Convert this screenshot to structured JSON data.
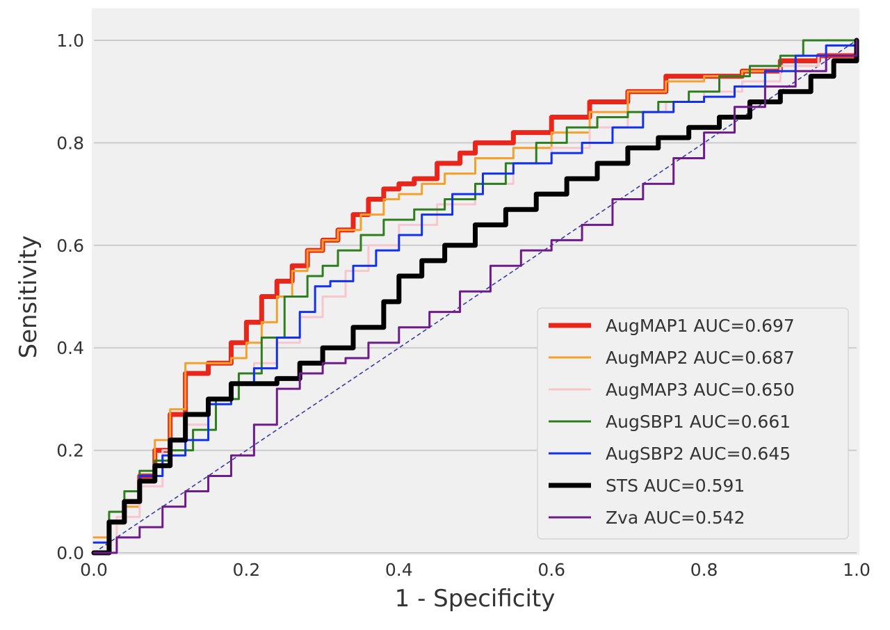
{
  "chart_data": {
    "type": "line",
    "title": "",
    "xlabel": "1 - Specificity",
    "ylabel": "Sensitivity",
    "xlim": [
      0.0,
      1.0
    ],
    "ylim": [
      0.0,
      1.0
    ],
    "grid": "horizontal",
    "legend_placement": "lower-right",
    "x_ticks": [
      "0.0",
      "0.2",
      "0.4",
      "0.6",
      "0.8",
      "1.0"
    ],
    "y_ticks": [
      "0.0",
      "0.2",
      "0.4",
      "0.6",
      "0.8",
      "1.0"
    ],
    "background_color": "#f0f0f0",
    "diagonal": {
      "x": [
        0,
        1
      ],
      "y": [
        0,
        1
      ],
      "color": "#3a3aa0",
      "style": "dashed"
    },
    "series": [
      {
        "name": "AugMAP1 AUC=0.697",
        "color": "#e8261c",
        "x": [
          0.0,
          0.02,
          0.04,
          0.06,
          0.08,
          0.1,
          0.12,
          0.15,
          0.18,
          0.2,
          0.22,
          0.24,
          0.26,
          0.28,
          0.3,
          0.32,
          0.34,
          0.36,
          0.38,
          0.4,
          0.42,
          0.45,
          0.48,
          0.5,
          0.55,
          0.6,
          0.65,
          0.7,
          0.75,
          0.8,
          0.85,
          0.9,
          0.95,
          1.0
        ],
        "y": [
          0.0,
          0.06,
          0.1,
          0.15,
          0.2,
          0.27,
          0.35,
          0.37,
          0.41,
          0.45,
          0.5,
          0.53,
          0.56,
          0.59,
          0.61,
          0.63,
          0.66,
          0.69,
          0.71,
          0.72,
          0.73,
          0.76,
          0.78,
          0.8,
          0.82,
          0.85,
          0.88,
          0.9,
          0.93,
          0.93,
          0.94,
          0.96,
          0.97,
          1.0
        ]
      },
      {
        "name": "AugMAP2 AUC=0.687",
        "color": "#f5a02c",
        "x": [
          0.0,
          0.02,
          0.04,
          0.06,
          0.08,
          0.1,
          0.12,
          0.15,
          0.18,
          0.2,
          0.22,
          0.24,
          0.26,
          0.28,
          0.3,
          0.32,
          0.35,
          0.38,
          0.4,
          0.43,
          0.46,
          0.5,
          0.55,
          0.6,
          0.65,
          0.7,
          0.75,
          0.8,
          0.85,
          0.9,
          0.95,
          1.0
        ],
        "y": [
          0.03,
          0.06,
          0.09,
          0.15,
          0.22,
          0.28,
          0.37,
          0.37,
          0.38,
          0.41,
          0.45,
          0.5,
          0.55,
          0.59,
          0.61,
          0.63,
          0.66,
          0.69,
          0.7,
          0.72,
          0.74,
          0.77,
          0.79,
          0.82,
          0.86,
          0.9,
          0.92,
          0.93,
          0.94,
          0.95,
          0.97,
          1.0
        ]
      },
      {
        "name": "AugMAP3 AUC=0.650",
        "color": "#f8c6cf",
        "x": [
          0.0,
          0.03,
          0.06,
          0.09,
          0.12,
          0.15,
          0.18,
          0.21,
          0.24,
          0.27,
          0.3,
          0.33,
          0.36,
          0.4,
          0.45,
          0.5,
          0.55,
          0.6,
          0.65,
          0.7,
          0.75,
          0.8,
          0.85,
          0.9,
          0.95,
          1.0
        ],
        "y": [
          0.0,
          0.07,
          0.13,
          0.2,
          0.25,
          0.3,
          0.33,
          0.37,
          0.41,
          0.46,
          0.5,
          0.55,
          0.6,
          0.64,
          0.68,
          0.72,
          0.76,
          0.79,
          0.83,
          0.86,
          0.88,
          0.9,
          0.92,
          0.95,
          0.97,
          1.0
        ]
      },
      {
        "name": "AugSBP1 AUC=0.661",
        "color": "#2e7d1e",
        "x": [
          0.0,
          0.02,
          0.04,
          0.06,
          0.08,
          0.1,
          0.13,
          0.16,
          0.19,
          0.22,
          0.25,
          0.28,
          0.3,
          0.32,
          0.35,
          0.38,
          0.42,
          0.46,
          0.5,
          0.54,
          0.58,
          0.62,
          0.66,
          0.7,
          0.74,
          0.78,
          0.82,
          0.86,
          0.9,
          0.93,
          1.0
        ],
        "y": [
          0.0,
          0.08,
          0.12,
          0.16,
          0.18,
          0.2,
          0.24,
          0.3,
          0.35,
          0.42,
          0.5,
          0.54,
          0.56,
          0.59,
          0.62,
          0.65,
          0.67,
          0.69,
          0.72,
          0.76,
          0.8,
          0.83,
          0.85,
          0.86,
          0.88,
          0.9,
          0.93,
          0.95,
          0.97,
          1.0,
          1.0
        ]
      },
      {
        "name": "AugSBP2 AUC=0.645",
        "color": "#1230f0",
        "x": [
          0.0,
          0.02,
          0.04,
          0.06,
          0.09,
          0.12,
          0.15,
          0.18,
          0.21,
          0.24,
          0.27,
          0.29,
          0.31,
          0.34,
          0.37,
          0.4,
          0.43,
          0.47,
          0.51,
          0.55,
          0.6,
          0.64,
          0.68,
          0.72,
          0.76,
          0.8,
          0.84,
          0.88,
          0.92,
          0.96,
          1.0
        ],
        "y": [
          0.02,
          0.06,
          0.1,
          0.15,
          0.19,
          0.22,
          0.29,
          0.33,
          0.36,
          0.42,
          0.47,
          0.52,
          0.53,
          0.56,
          0.59,
          0.62,
          0.66,
          0.7,
          0.74,
          0.76,
          0.78,
          0.8,
          0.83,
          0.86,
          0.88,
          0.89,
          0.91,
          0.94,
          0.97,
          0.99,
          1.0
        ]
      },
      {
        "name": "STS AUC=0.591",
        "color": "#000000",
        "x": [
          0.0,
          0.02,
          0.04,
          0.06,
          0.08,
          0.1,
          0.12,
          0.15,
          0.18,
          0.21,
          0.24,
          0.27,
          0.3,
          0.34,
          0.38,
          0.4,
          0.43,
          0.46,
          0.5,
          0.54,
          0.58,
          0.62,
          0.66,
          0.7,
          0.74,
          0.78,
          0.82,
          0.86,
          0.9,
          0.94,
          0.97,
          1.0
        ],
        "y": [
          0.0,
          0.06,
          0.1,
          0.14,
          0.17,
          0.22,
          0.27,
          0.3,
          0.33,
          0.33,
          0.34,
          0.37,
          0.4,
          0.44,
          0.49,
          0.54,
          0.57,
          0.6,
          0.64,
          0.67,
          0.7,
          0.73,
          0.76,
          0.79,
          0.81,
          0.83,
          0.85,
          0.88,
          0.9,
          0.93,
          0.96,
          1.0
        ]
      },
      {
        "name": "Zva AUC=0.542",
        "color": "#6e1a8a",
        "x": [
          0.0,
          0.03,
          0.06,
          0.09,
          0.12,
          0.15,
          0.18,
          0.21,
          0.24,
          0.27,
          0.3,
          0.33,
          0.36,
          0.4,
          0.44,
          0.48,
          0.52,
          0.56,
          0.6,
          0.64,
          0.68,
          0.72,
          0.76,
          0.8,
          0.84,
          0.88,
          0.92,
          0.96,
          1.0
        ],
        "y": [
          0.0,
          0.03,
          0.05,
          0.09,
          0.12,
          0.15,
          0.19,
          0.25,
          0.32,
          0.35,
          0.37,
          0.38,
          0.41,
          0.44,
          0.47,
          0.51,
          0.56,
          0.59,
          0.61,
          0.64,
          0.69,
          0.72,
          0.77,
          0.82,
          0.87,
          0.91,
          0.94,
          0.97,
          1.0
        ]
      }
    ]
  }
}
